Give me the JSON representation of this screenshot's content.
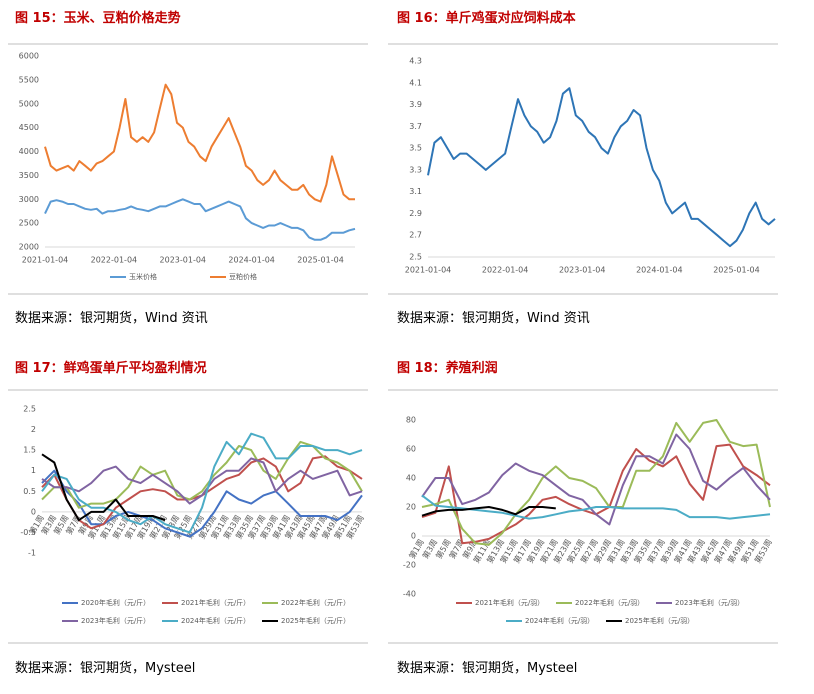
{
  "chart_data": [
    {
      "type": "line",
      "title": "图 15：玉米、豆粕价格走势",
      "source": "数据来源：银河期货，Wind 资讯",
      "categories": [
        "2021-01-04",
        null,
        null,
        null,
        null,
        null,
        null,
        null,
        null,
        null,
        null,
        null,
        "2022-01-04",
        null,
        null,
        null,
        null,
        null,
        null,
        null,
        null,
        null,
        null,
        null,
        "2023-01-04",
        null,
        null,
        null,
        null,
        null,
        null,
        null,
        null,
        null,
        null,
        null,
        "2024-01-04",
        null,
        null,
        null,
        null,
        null,
        null,
        null,
        null,
        null,
        null,
        null,
        "2025-01-04",
        null,
        null,
        null,
        null,
        null,
        null
      ],
      "ylim": [
        2000,
        6000
      ],
      "yticks": [
        2000,
        2500,
        3000,
        3500,
        4000,
        4500,
        5000,
        5500,
        6000
      ],
      "legend": "bottom",
      "series": [
        {
          "name": "玉米价格",
          "color": "#5b9bd5",
          "values": [
            2700,
            2950,
            2980,
            2950,
            2900,
            2900,
            2850,
            2800,
            2780,
            2800,
            2700,
            2750,
            2750,
            2780,
            2800,
            2850,
            2800,
            2780,
            2750,
            2800,
            2850,
            2850,
            2900,
            2950,
            3000,
            2950,
            2900,
            2900,
            2750,
            2800,
            2850,
            2900,
            2950,
            2900,
            2850,
            2600,
            2500,
            2450,
            2400,
            2450,
            2450,
            2500,
            2450,
            2400,
            2400,
            2350,
            2200,
            2150,
            2150,
            2200,
            2300,
            2300,
            2300,
            2350,
            2380
          ]
        },
        {
          "name": "豆粕价格",
          "color": "#ed7d31",
          "values": [
            4100,
            3700,
            3600,
            3650,
            3700,
            3600,
            3800,
            3700,
            3600,
            3750,
            3800,
            3900,
            4000,
            4500,
            5100,
            4300,
            4200,
            4300,
            4200,
            4400,
            4900,
            5400,
            5200,
            4600,
            4500,
            4200,
            4100,
            3900,
            3800,
            4100,
            4300,
            4500,
            4700,
            4400,
            4100,
            3700,
            3600,
            3400,
            3300,
            3400,
            3600,
            3400,
            3300,
            3200,
            3200,
            3300,
            3100,
            3000,
            2950,
            3300,
            3900,
            3500,
            3100,
            3000,
            3000
          ]
        }
      ]
    },
    {
      "type": "line",
      "title": "图 16：单斤鸡蛋对应饲料成本",
      "source": "数据来源：银河期货，Wind 资讯",
      "categories": [
        "2021-01-04",
        null,
        null,
        null,
        null,
        null,
        null,
        null,
        null,
        null,
        null,
        null,
        "2022-01-04",
        null,
        null,
        null,
        null,
        null,
        null,
        null,
        null,
        null,
        null,
        null,
        "2023-01-04",
        null,
        null,
        null,
        null,
        null,
        null,
        null,
        null,
        null,
        null,
        null,
        "2024-01-04",
        null,
        null,
        null,
        null,
        null,
        null,
        null,
        null,
        null,
        null,
        null,
        "2025-01-04",
        null,
        null,
        null,
        null,
        null,
        null
      ],
      "ylim": [
        2.5,
        4.3
      ],
      "yticks": [
        2.5,
        2.7,
        2.9,
        3.1,
        3.3,
        3.5,
        3.7,
        3.9,
        4.1,
        4.3
      ],
      "series": [
        {
          "color": "#2e75b6",
          "values": [
            3.25,
            3.55,
            3.6,
            3.5,
            3.4,
            3.45,
            3.45,
            3.4,
            3.35,
            3.3,
            3.35,
            3.4,
            3.45,
            3.7,
            3.95,
            3.8,
            3.7,
            3.65,
            3.55,
            3.6,
            3.75,
            4.0,
            4.05,
            3.8,
            3.75,
            3.65,
            3.6,
            3.5,
            3.45,
            3.6,
            3.7,
            3.75,
            3.85,
            3.8,
            3.5,
            3.3,
            3.2,
            3.0,
            2.9,
            2.95,
            3.0,
            2.85,
            2.85,
            2.8,
            2.75,
            2.7,
            2.65,
            2.6,
            2.65,
            2.75,
            2.9,
            3.0,
            2.85,
            2.8,
            2.85
          ]
        }
      ]
    },
    {
      "type": "line",
      "title": "图 17：鲜鸡蛋单斤平均盈利情况",
      "source": "数据来源：银河期货，Mysteel",
      "categories": [
        "第1周",
        "第3周",
        "第5周",
        "第7周",
        "第9周",
        "第11周",
        "第13周",
        "第15周",
        "第17周",
        "第19周",
        "第21周",
        "第23周",
        "第25周",
        "第27周",
        "第29周",
        "第31周",
        "第33周",
        "第35周",
        "第37周",
        "第39周",
        "第41周",
        "第43周",
        "第45周",
        "第47周",
        "第49周",
        "第51周",
        "第53周"
      ],
      "ylim": [
        -1,
        2.5
      ],
      "yticks": [
        -1,
        -0.5,
        0,
        0.5,
        1,
        1.5,
        2,
        2.5
      ],
      "legend": "bottom",
      "series": [
        {
          "name": "2020年毛利（元/斤）",
          "color": "#4472c4",
          "values": [
            0.7,
            1.0,
            0.5,
            0.2,
            -0.3,
            -0.3,
            -0.1,
            0,
            -0.1,
            -0.2,
            -0.4,
            -0.5,
            -0.6,
            -0.4,
            0,
            0.5,
            0.3,
            0.2,
            0.4,
            0.5,
            0.2,
            -0.1,
            -0.1,
            -0.1,
            -0.2,
            0,
            0.4
          ]
        },
        {
          "name": "2021年毛利（元/斤）",
          "color": "#c0504d",
          "values": [
            0.6,
            0.9,
            0.3,
            -0.2,
            -0.4,
            -0.3,
            0.1,
            0.3,
            0.5,
            0.55,
            0.5,
            0.3,
            0.3,
            0.4,
            0.6,
            0.8,
            0.9,
            1.2,
            1.3,
            1.1,
            0.5,
            0.7,
            1.3,
            1.35,
            1.1,
            1.0,
            0.8
          ]
        },
        {
          "name": "2022年毛利（元/斤）",
          "color": "#9bbb59",
          "values": [
            0.3,
            0.6,
            0.6,
            0.1,
            0.2,
            0.2,
            0.3,
            0.6,
            1.1,
            0.9,
            1.0,
            0.4,
            0.3,
            0.5,
            0.9,
            1.2,
            1.6,
            1.5,
            1.0,
            0.8,
            1.3,
            1.7,
            1.6,
            1.3,
            1.2,
            1.0,
            0.5
          ]
        },
        {
          "name": "2023年毛利（元/斤）",
          "color": "#8064a2",
          "values": [
            0.8,
            0.6,
            0.6,
            0.5,
            0.7,
            1.0,
            1.1,
            0.8,
            0.7,
            0.9,
            0.7,
            0.5,
            0.2,
            0.4,
            0.8,
            1.0,
            1.0,
            1.3,
            1.2,
            0.5,
            0.8,
            1.0,
            0.8,
            0.9,
            1.0,
            0.4,
            0.5
          ]
        },
        {
          "name": "2024年毛利（元/斤）",
          "color": "#4bacc6",
          "values": [
            0.5,
            0.9,
            0.8,
            0.3,
            0.1,
            0.1,
            0.0,
            -0.2,
            -0.3,
            -0.1,
            -0.3,
            -0.4,
            -0.5,
            0.1,
            1.1,
            1.7,
            1.4,
            1.9,
            1.8,
            1.3,
            1.3,
            1.6,
            1.6,
            1.5,
            1.5,
            1.4,
            1.5
          ]
        },
        {
          "name": "2025年毛利（元/斤）",
          "color": "#000000",
          "values": [
            1.4,
            1.2,
            0.3,
            -0.2,
            0,
            0,
            0.3,
            -0.1,
            -0.1,
            -0.1,
            -0.2,
            null,
            null,
            null,
            null,
            null,
            null,
            null,
            null,
            null,
            null,
            null,
            null,
            null,
            null,
            null,
            null
          ]
        }
      ]
    },
    {
      "type": "line",
      "title": "图 18：养殖利润",
      "source": "数据来源：银河期货，Mysteel",
      "categories": [
        "第1周",
        "第3周",
        "第5周",
        "第7周",
        "第9周",
        "第11周",
        "第13周",
        "第15周",
        "第17周",
        "第19周",
        "第21周",
        "第23周",
        "第25周",
        "第27周",
        "第29周",
        "第31周",
        "第33周",
        "第35周",
        "第37周",
        "第39周",
        "第41周",
        "第43周",
        "第45周",
        "第47周",
        "第49周",
        "第51周",
        "第53周"
      ],
      "ylim": [
        -40,
        80
      ],
      "yticks": [
        -40,
        -20,
        0,
        20,
        40,
        60,
        80
      ],
      "legend": "bottom",
      "series": [
        {
          "name": "2021年毛利（元/羽）",
          "color": "#c0504d",
          "values": [
            13,
            16,
            48,
            -5,
            -4,
            -2,
            3,
            8,
            15,
            25,
            27,
            22,
            18,
            15,
            20,
            45,
            60,
            52,
            48,
            55,
            36,
            25,
            62,
            63,
            48,
            42,
            35
          ]
        },
        {
          "name": "2022年毛利（元/羽）",
          "color": "#9bbb59",
          "values": [
            20,
            22,
            25,
            5,
            -5,
            -6,
            2,
            15,
            25,
            40,
            48,
            40,
            38,
            33,
            20,
            20,
            45,
            45,
            55,
            78,
            65,
            78,
            80,
            65,
            62,
            63,
            20
          ]
        },
        {
          "name": "2023年毛利（元/羽）",
          "color": "#8064a2",
          "values": [
            27,
            40,
            40,
            22,
            25,
            30,
            42,
            50,
            45,
            42,
            35,
            28,
            25,
            15,
            8,
            35,
            55,
            55,
            50,
            70,
            60,
            38,
            32,
            40,
            47,
            35,
            25
          ]
        },
        {
          "name": "2024年毛利（元/羽）",
          "color": "#4bacc6",
          "values": [
            28,
            21,
            20,
            19,
            18,
            17,
            16,
            14,
            12,
            13,
            15,
            17,
            18,
            20,
            20,
            19,
            19,
            19,
            19,
            18,
            13,
            13,
            13,
            12,
            13,
            14,
            15
          ]
        },
        {
          "name": "2025年毛利（元/羽）",
          "color": "#000000",
          "values": [
            14,
            17,
            18,
            18,
            19,
            20,
            18,
            15,
            20,
            20,
            19,
            null,
            null,
            null,
            null,
            null,
            null,
            null,
            null,
            null,
            null,
            null,
            null,
            null,
            null,
            null,
            null
          ]
        }
      ]
    }
  ]
}
